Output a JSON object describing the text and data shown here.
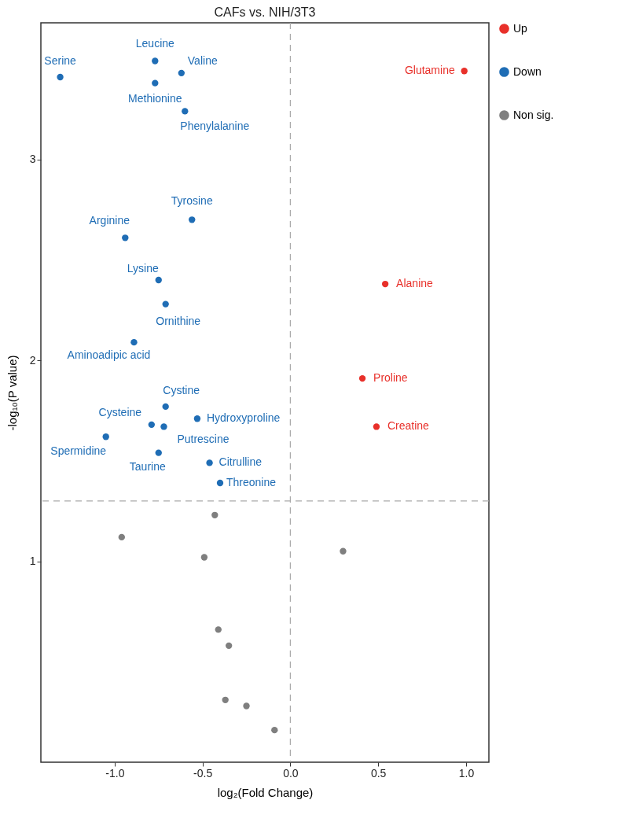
{
  "chart_data": {
    "type": "scatter",
    "title": "CAFs vs. NIH/3T3",
    "xlabel": "log₂(Fold Change)",
    "ylabel": "-log₁₀(P value)",
    "xlim": [
      -1.42,
      1.13
    ],
    "ylim": [
      0,
      3.68
    ],
    "xticks": [
      {
        "value": -1,
        "label": "-1.0"
      },
      {
        "value": -0.5,
        "label": "-0.5"
      },
      {
        "value": 0,
        "label": "0.0"
      },
      {
        "value": 0.5,
        "label": "0.5"
      },
      {
        "value": 1,
        "label": "1.0"
      }
    ],
    "yticks": [
      1,
      2,
      3
    ],
    "grid": false,
    "legend": "right",
    "marker": "circle",
    "series": [
      {
        "name": "Up",
        "color": "#e8302a",
        "x": [
          0.99,
          0.54,
          0.41,
          0.49
        ],
        "values": [
          3.44,
          2.38,
          1.91,
          1.67
        ]
      },
      {
        "name": "Down",
        "color": "#1f6db5",
        "x": [
          -1.31,
          -0.77,
          -0.62,
          -0.77,
          -0.6,
          -0.56,
          -0.94,
          -0.75,
          -0.71,
          -0.89,
          -0.71,
          -0.79,
          -0.72,
          -0.53,
          -1.05,
          -0.75,
          -0.46,
          -0.4
        ],
        "values": [
          3.41,
          3.49,
          3.43,
          3.38,
          3.24,
          2.7,
          2.61,
          2.4,
          2.28,
          2.09,
          1.77,
          1.68,
          1.67,
          1.71,
          1.62,
          1.54,
          1.49,
          1.39
        ]
      },
      {
        "name": "Non sig.",
        "color": "#7f7f7f",
        "x": [
          -0.43,
          -0.96,
          -0.49,
          0.3,
          -0.41,
          -0.35,
          -0.37,
          -0.25,
          -0.09
        ],
        "values": [
          1.23,
          1.12,
          1.02,
          1.05,
          0.66,
          0.58,
          0.31,
          0.28,
          0.16
        ]
      }
    ],
    "ref_lines": [
      {
        "axis": "x",
        "value": 0,
        "color": "#aaaaaa",
        "line_style": "dashed"
      },
      {
        "axis": "y",
        "value": 1.3,
        "color": "#aaaaaa",
        "line_style": "dashed"
      }
    ],
    "annotations": [
      {
        "text": "Glutamine",
        "x": 0.99,
        "y": 3.44
      },
      {
        "text": "Alanine",
        "x": 0.54,
        "y": 2.38
      },
      {
        "text": "Proline",
        "x": 0.41,
        "y": 1.91
      },
      {
        "text": "Creatine",
        "x": 0.49,
        "y": 1.67
      },
      {
        "text": "Serine",
        "x": -1.31,
        "y": 3.41
      },
      {
        "text": "Leucine",
        "x": -0.77,
        "y": 3.49
      },
      {
        "text": "Valine",
        "x": -0.62,
        "y": 3.43
      },
      {
        "text": "Methionine",
        "x": -0.77,
        "y": 3.38
      },
      {
        "text": "Phenylalanine",
        "x": -0.6,
        "y": 3.24
      },
      {
        "text": "Tyrosine",
        "x": -0.56,
        "y": 2.7
      },
      {
        "text": "Arginine",
        "x": -0.94,
        "y": 2.61
      },
      {
        "text": "Lysine",
        "x": -0.75,
        "y": 2.4
      },
      {
        "text": "Ornithine",
        "x": -0.71,
        "y": 2.28
      },
      {
        "text": "Aminoadipic acid",
        "x": -0.89,
        "y": 2.09
      },
      {
        "text": "Cystine",
        "x": -0.71,
        "y": 1.77
      },
      {
        "text": "Cysteine",
        "x": -0.79,
        "y": 1.68
      },
      {
        "text": "Putrescine",
        "x": -0.72,
        "y": 1.67
      },
      {
        "text": "Hydroxyproline",
        "x": -0.53,
        "y": 1.71
      },
      {
        "text": "Spermidine",
        "x": -1.05,
        "y": 1.62
      },
      {
        "text": "Taurine",
        "x": -0.75,
        "y": 1.54
      },
      {
        "text": "Citrulline",
        "x": -0.46,
        "y": 1.49
      },
      {
        "text": "Threonine",
        "x": -0.4,
        "y": 1.39
      }
    ]
  }
}
